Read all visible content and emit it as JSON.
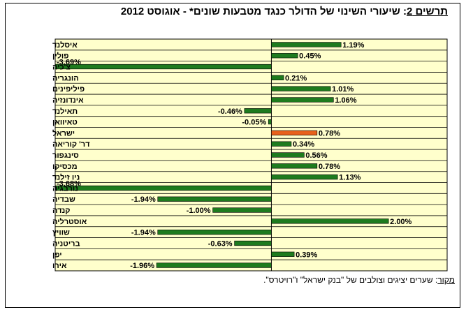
{
  "title": {
    "label": "תרשים 2",
    "text": ": שיעורי השינוי של הדולר כנגד מטבעות שונים* - אוגוסט 2012"
  },
  "source": {
    "label": "מקור",
    "text": ": שערים יציגים וצולבים של \"בנק ישראל\" ו\"רויטרס\"."
  },
  "colors": {
    "plot_background": "#FFFFCC",
    "bar": "#1E7B1E",
    "highlight_bar": "#E8601C",
    "grid": "#000000"
  },
  "chart_data": {
    "type": "bar",
    "orientation": "horizontal",
    "title": "תרשים 2: שיעורי השינוי של הדולר כנגד מטבעות שונים* - אוגוסט 2012",
    "categories": [
      "איסלנד",
      "פולין",
      "צ'כיה",
      "הונגריה",
      "פיליפינים",
      "אינדונזיה",
      "תאילנד",
      "טאיוואן",
      "ישראל",
      "דר' קוריאה",
      "סינגפור",
      "מכסיקו",
      "ניו זילנד",
      "נורבגיה",
      "שבדיה",
      "קנדה",
      "אוסטרליה",
      "שוויץ",
      "בריטניה",
      "יפן",
      "אירו"
    ],
    "values": [
      1.19,
      0.45,
      -3.69,
      0.21,
      1.01,
      1.06,
      -0.46,
      -0.05,
      0.78,
      0.34,
      0.56,
      0.78,
      1.13,
      -3.68,
      -1.94,
      -1.0,
      2.0,
      -1.94,
      -0.63,
      0.39,
      -1.96
    ],
    "labels": [
      "1.19%",
      "0.45%",
      "-3.69%",
      "0.21%",
      "1.01%",
      "1.06%",
      "-0.46%",
      "-0.05%",
      "0.78%",
      "0.34%",
      "0.56%",
      "0.78%",
      "1.13%",
      "-3.68%",
      "-1.94%",
      "-1.00%",
      "2.00%",
      "-1.94%",
      "-0.63%",
      "0.39%",
      "-1.96%"
    ],
    "highlight_category": "ישראל",
    "xlim": [
      -3.69,
      3.0
    ],
    "grid": true,
    "legend": "none"
  }
}
